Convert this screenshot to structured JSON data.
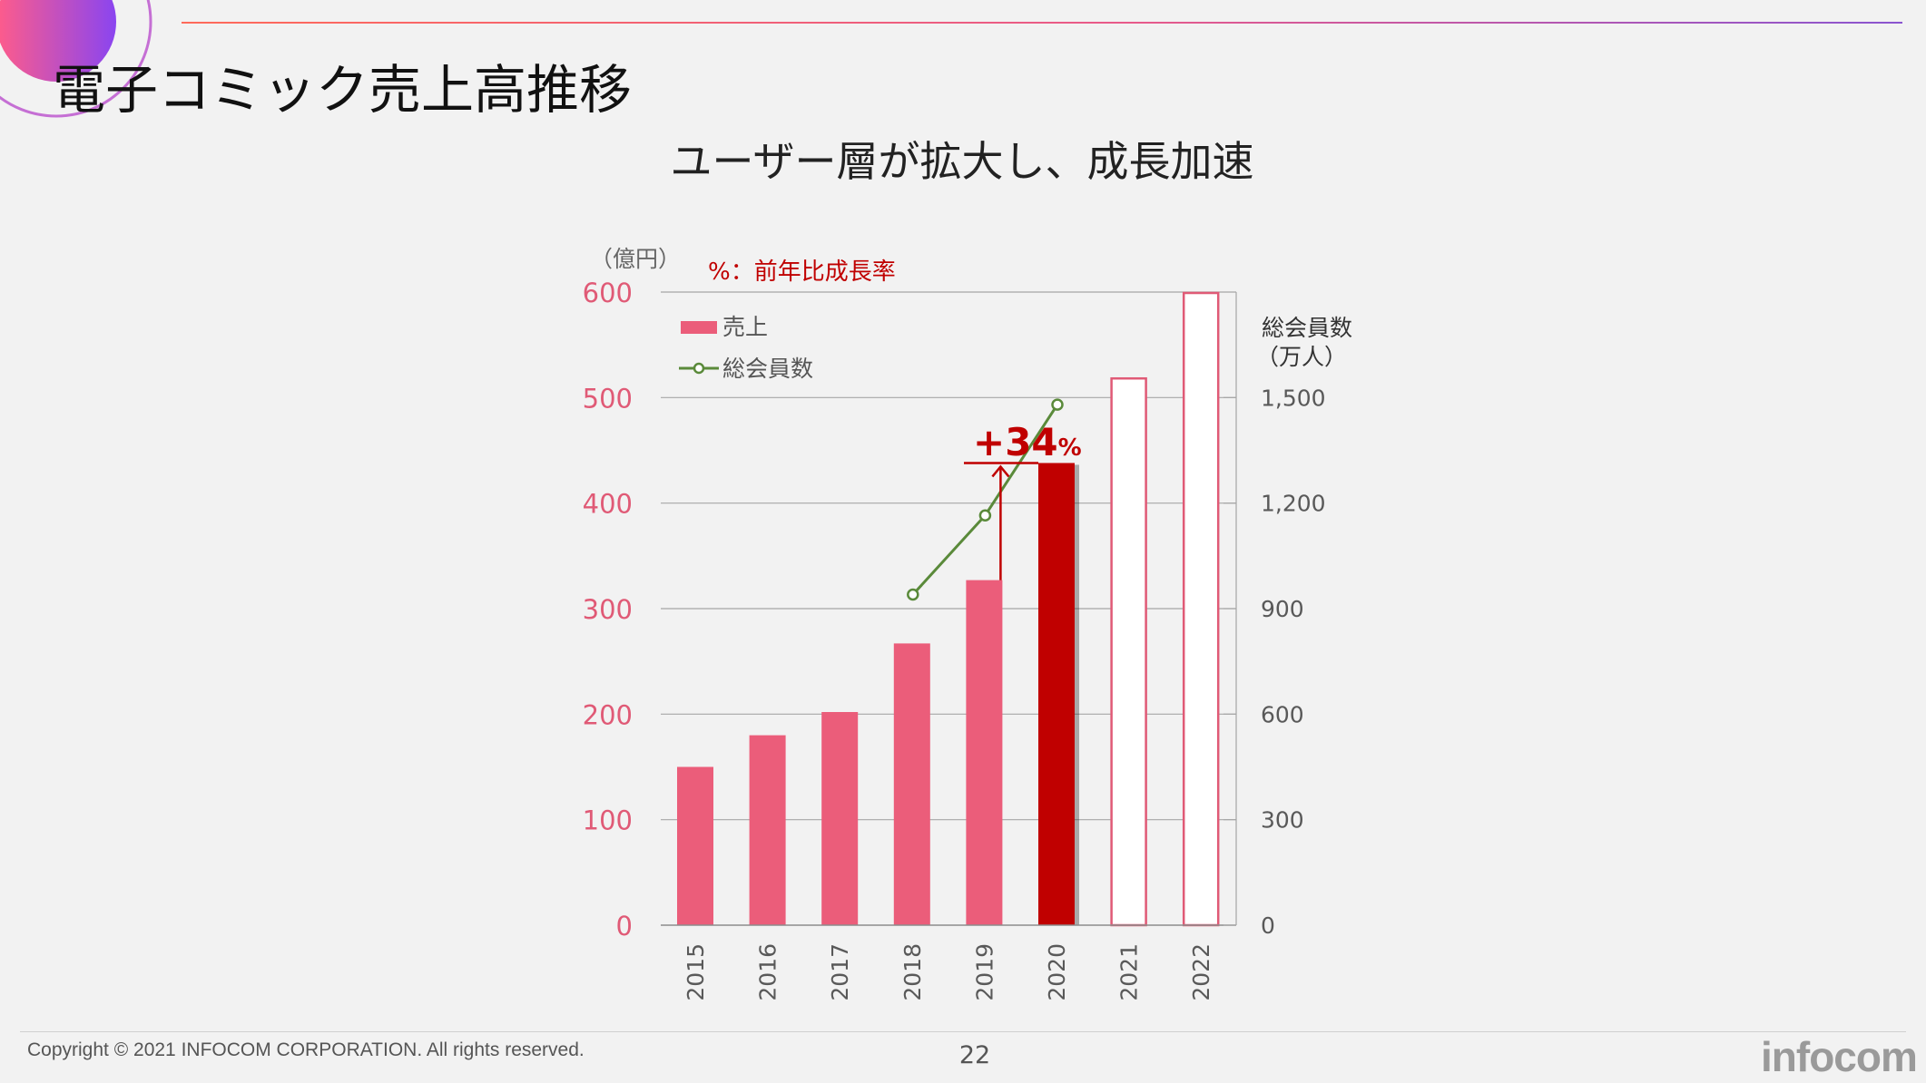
{
  "slide": {
    "title": "電子コミック売上高推移",
    "subtitle": "ユーザー層が拡大し、成長加速",
    "copyright": "Copyright © 2021 INFOCOM CORPORATION. All rights reserved.",
    "page_number": "22",
    "logo_text": "infocom"
  },
  "colors": {
    "bar": "#eb5d7a",
    "bar_highlight": "#c00000",
    "bar_forecast_stroke": "#e05a76",
    "line": "#5a8a3a",
    "left_axis_text": "#e05a76",
    "annotation": "#c00000",
    "accent_gradient_start": "#ff5c8a",
    "accent_gradient_end": "#7b4cf0"
  },
  "chart_data": {
    "type": "bar",
    "title": "",
    "note": "%：前年比成長率",
    "left_axis_unit": "（億円）",
    "right_axis_label": [
      "総会員数",
      "（万人）"
    ],
    "categories": [
      "2015",
      "2016",
      "2017",
      "2018",
      "2019",
      "2020",
      "2021",
      "2022"
    ],
    "ylim": [
      0,
      600
    ],
    "y_ticks": [
      "0",
      "100",
      "200",
      "300",
      "400",
      "500",
      "600"
    ],
    "y2lim": [
      0,
      1800
    ],
    "y2_ticks": [
      "0",
      "300",
      "600",
      "900",
      "1,200",
      "1,500"
    ],
    "series": [
      {
        "name": "売上",
        "type": "bar",
        "axis": "left",
        "values": [
          150,
          180,
          202,
          267,
          327,
          438,
          519,
          600
        ],
        "styles": [
          "actual",
          "actual",
          "actual",
          "actual",
          "actual",
          "highlight",
          "forecast",
          "forecast"
        ]
      },
      {
        "name": "総会員数",
        "type": "line",
        "axis": "right",
        "x": [
          "2018",
          "2019",
          "2020"
        ],
        "values": [
          940,
          1165,
          1480
        ]
      }
    ],
    "annotation": {
      "number": "+34",
      "suffix": "%",
      "from": "2019",
      "to": "2020"
    },
    "legend": [
      "売上",
      "総会員数"
    ],
    "legend_position": "top-left",
    "grid": true
  }
}
